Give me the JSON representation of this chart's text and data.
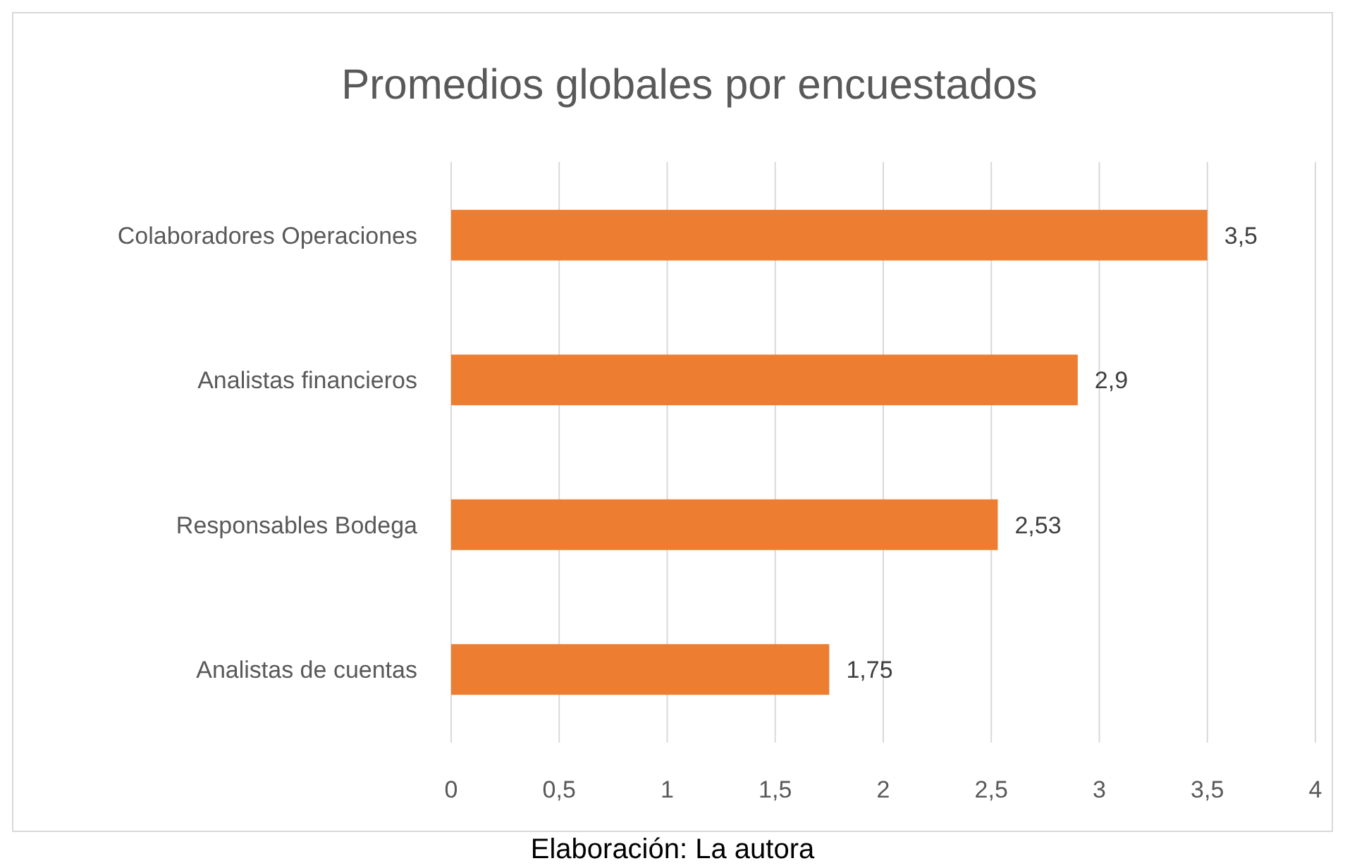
{
  "chart_data": {
    "type": "bar",
    "orientation": "horizontal",
    "title": "Promedios globales por encuestados",
    "categories": [
      "Colaboradores Operaciones",
      "Analistas financieros",
      "Responsables Bodega",
      "Analistas de cuentas"
    ],
    "values": [
      3.5,
      2.9,
      2.53,
      1.75
    ],
    "value_labels": [
      "3,5",
      "2,9",
      "2,53",
      "1,75"
    ],
    "color": "#ed7d31",
    "xlim": [
      0,
      4
    ],
    "xticks": [
      0,
      {
        "value": 0.5,
        "label": "0,5"
      },
      1,
      {
        "value": 1.5,
        "label": "1,5"
      },
      2,
      {
        "value": 2.5,
        "label": "2,5"
      },
      3,
      {
        "value": 3.5,
        "label": "3,5"
      },
      4
    ],
    "grid": "x",
    "annotations": [
      "Elaboración: La autora"
    ]
  }
}
